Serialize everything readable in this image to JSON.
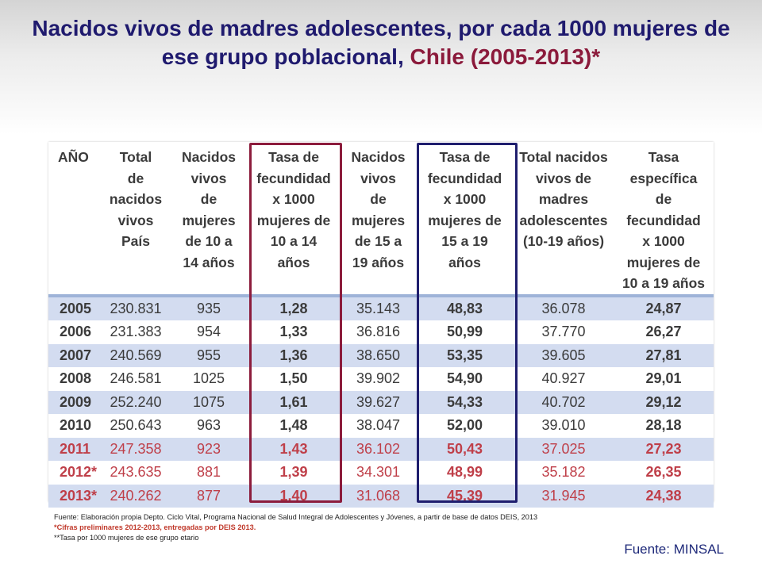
{
  "slide": {
    "title_main": "Nacidos vivos de madres adolescentes, por cada 1000 mujeres de ese grupo poblacional, ",
    "title_accent": "Chile (2005-2013)*"
  },
  "table": {
    "headers": [
      "AÑO",
      "Total\nde\nnacidos\nvivos\nPaís",
      "Nacidos\nvivos\nde\nmujeres\nde 10 a\n14 años",
      "Tasa de\nfecundidad\nx 1000\nmujeres de\n10 a 14\naños",
      "Nacidos\nvivos\nde\nmujeres\nde 15 a\n19 años",
      "Tasa de\nfecundidad\nx 1000\nmujeres de\n15 a 19\naños",
      "Total nacidos\nvivos de\nmadres\nadolescentes\n(10-19 años)",
      "Tasa\nespecífica\nde\nfecundidad\nx 1000\nmujeres de\n10 a 19 años"
    ],
    "rows": [
      [
        "2005",
        "230.831",
        "935",
        "1,28",
        "35.143",
        "48,83",
        "36.078",
        "24,87"
      ],
      [
        "2006",
        "231.383",
        "954",
        "1,33",
        "36.816",
        "50,99",
        "37.770",
        "26,27"
      ],
      [
        "2007",
        "240.569",
        "955",
        "1,36",
        "38.650",
        "53,35",
        "39.605",
        "27,81"
      ],
      [
        "2008",
        "246.581",
        "1025",
        "1,50",
        "39.902",
        "54,90",
        "40.927",
        "29,01"
      ],
      [
        "2009",
        "252.240",
        "1075",
        "1,61",
        "39.627",
        "54,33",
        "40.702",
        "29,12"
      ],
      [
        "2010",
        "250.643",
        "963",
        "1,48",
        "38.047",
        "52,00",
        "39.010",
        "28,18"
      ],
      [
        "2011",
        "247.358",
        "923",
        "1,43",
        "36.102",
        "50,43",
        "37.025",
        "27,23"
      ],
      [
        "2012*",
        "243.635",
        "881",
        "1,39",
        "34.301",
        "48,99",
        "35.182",
        "26,35"
      ],
      [
        "2013*",
        "240.262",
        "877",
        "1,40",
        "31.068",
        "45,39",
        "31.945",
        "24,38"
      ]
    ]
  },
  "notes": {
    "source": "Fuente: Elaboración propia Depto. Ciclo Vital, Programa Nacional de Salud Integral de Adolescentes y Jóvenes,  a partir de base de datos DEIS, 2013",
    "preliminary": "*Cifras preliminares 2012-2013, entregadas por DEIS 2013.",
    "rate": "**Tasa por 1000 mujeres de ese grupo etario"
  },
  "credit": "Fuente: MINSAL",
  "colors": {
    "title": "#1f1a6e",
    "title_accent": "#8b1a3b",
    "band": "#d3dcf0",
    "preliminary_text": "#bf3f49",
    "highlight_red": "#8c1c3c",
    "highlight_blue": "#1f1e6e"
  }
}
